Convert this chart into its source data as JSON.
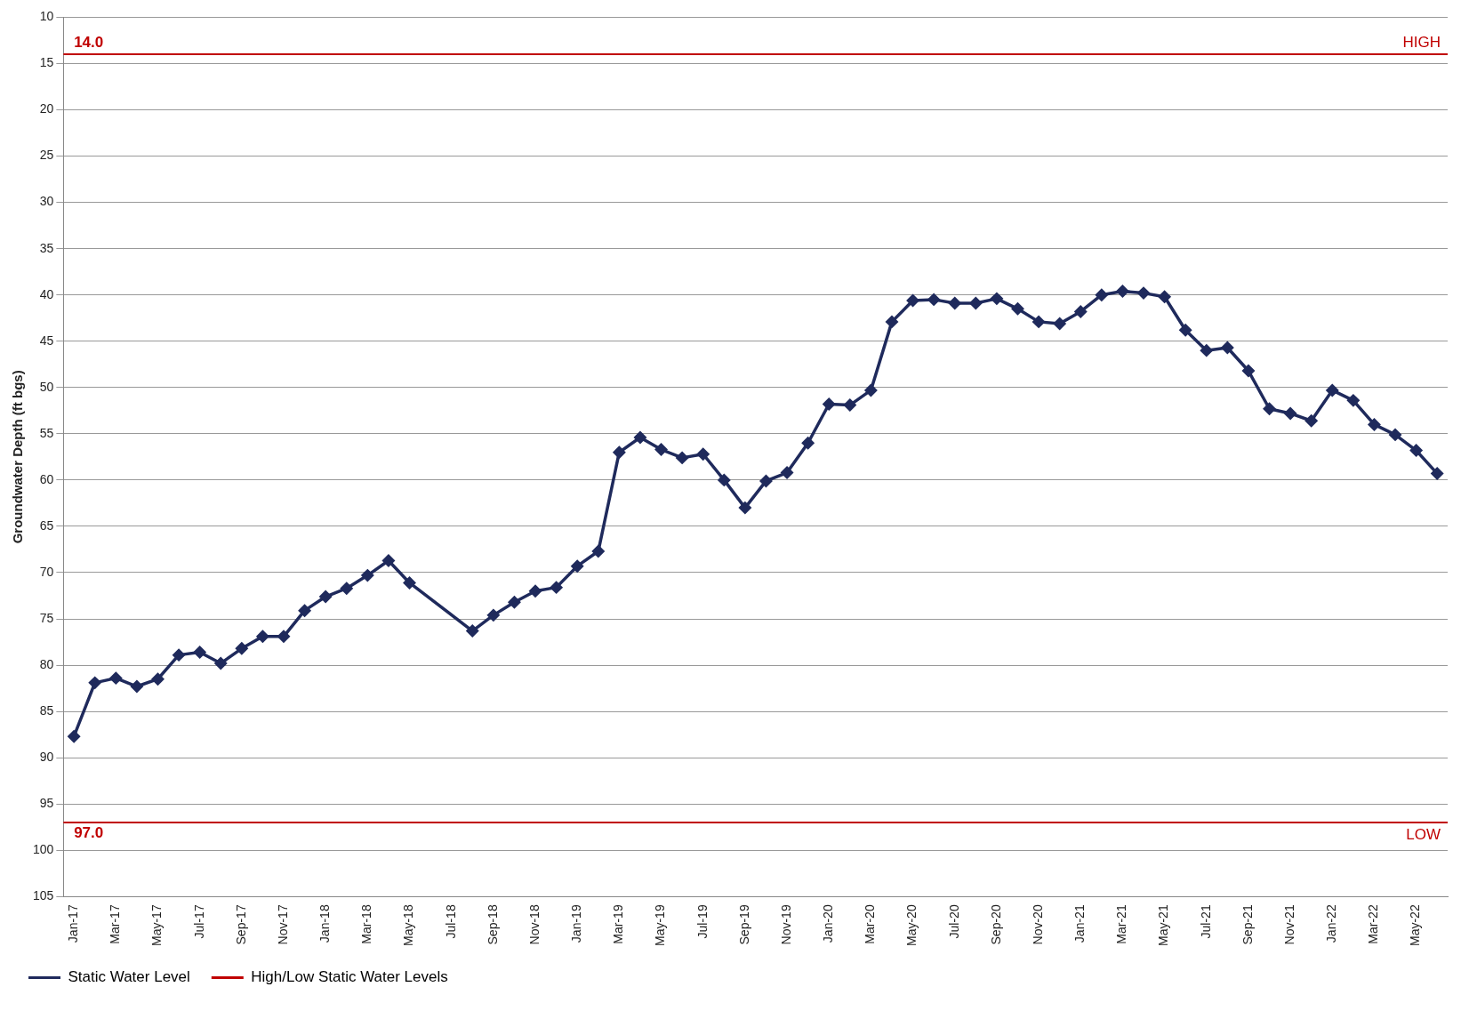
{
  "chart_data": {
    "type": "line",
    "ylabel": "Groundwater Depth (ft bgs)",
    "categories": [
      "Jan-17",
      null,
      "Mar-17",
      null,
      "May-17",
      null,
      "Jul-17",
      null,
      "Sep-17",
      null,
      "Nov-17",
      null,
      "Jan-18",
      null,
      "Mar-18",
      null,
      "May-18",
      null,
      "Jul-18",
      null,
      "Sep-18",
      null,
      "Nov-18",
      null,
      "Jan-19",
      null,
      "Mar-19",
      null,
      "May-19",
      null,
      "Jul-19",
      null,
      "Sep-19",
      null,
      "Nov-19",
      null,
      "Jan-20",
      null,
      "Mar-20",
      null,
      "May-20",
      null,
      "Jul-20",
      null,
      "Sep-20",
      null,
      "Nov-20",
      null,
      "Jan-21",
      null,
      "Mar-21",
      null,
      "May-21",
      null,
      "Jul-21",
      null,
      "Sep-21",
      null,
      "Nov-21",
      null,
      "Jan-22",
      null,
      "Mar-22",
      null,
      "May-22",
      null
    ],
    "series": [
      {
        "name": "Static Water Level",
        "color": "#1f2a5c",
        "values": [
          87.7,
          81.9,
          81.4,
          82.3,
          81.5,
          78.9,
          78.6,
          79.8,
          78.2,
          76.9,
          76.9,
          74.1,
          72.6,
          71.7,
          70.3,
          68.7,
          71.1,
          null,
          null,
          76.3,
          74.6,
          73.2,
          72.0,
          71.6,
          69.3,
          67.7,
          57.0,
          55.4,
          56.7,
          57.6,
          57.2,
          60.0,
          63.0,
          60.1,
          59.2,
          56.0,
          51.8,
          51.9,
          50.3,
          42.9,
          40.6,
          40.5,
          40.9,
          40.9,
          40.4,
          41.5,
          42.9,
          43.1,
          41.8,
          40.0,
          39.6,
          39.8,
          40.2,
          43.8,
          46.0,
          45.7,
          48.2,
          52.3,
          52.8,
          53.6,
          50.3,
          51.4,
          54.0,
          55.1,
          56.8,
          59.3
        ]
      }
    ],
    "ylim": [
      105,
      10
    ],
    "yticks": [
      10,
      15,
      20,
      25,
      30,
      35,
      40,
      45,
      50,
      55,
      60,
      65,
      70,
      75,
      80,
      85,
      90,
      95,
      100,
      105
    ],
    "grid": "y",
    "marker": "diamond",
    "line_style": "solid",
    "legend": "bottom left",
    "ref_lines": [
      {
        "axis": "y",
        "value": 14.0,
        "label": "HIGH",
        "color": "#c00000"
      },
      {
        "axis": "y",
        "value": 97.0,
        "label": "LOW",
        "color": "#c00000"
      }
    ],
    "annotations": [
      {
        "text": "14.0",
        "x": "Jan-17",
        "y": 14.0
      },
      {
        "text": "97.0",
        "x": "Jan-17",
        "y": 97.0
      },
      "High/Low Static Water Levels"
    ]
  }
}
